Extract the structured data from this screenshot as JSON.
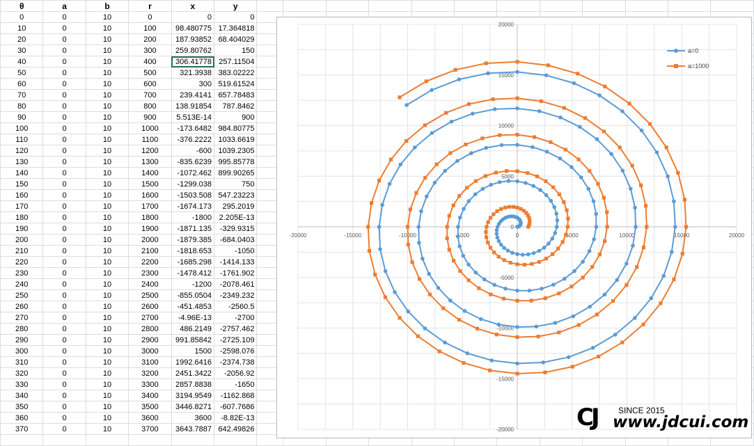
{
  "sheet": {
    "headers": [
      "θ",
      "a",
      "b",
      "r",
      "x",
      "y"
    ],
    "active_cell": {
      "row": 4,
      "col": 4
    },
    "rows": [
      [
        "0",
        "0",
        "10",
        "0",
        "0",
        "0"
      ],
      [
        "10",
        "0",
        "10",
        "100",
        "98.480775",
        "17.364818"
      ],
      [
        "20",
        "0",
        "10",
        "200",
        "187.93852",
        "68.404029"
      ],
      [
        "30",
        "0",
        "10",
        "300",
        "259.80762",
        "150"
      ],
      [
        "40",
        "0",
        "10",
        "400",
        "306.41778",
        "257.11504"
      ],
      [
        "50",
        "0",
        "10",
        "500",
        "321.3938",
        "383.02222"
      ],
      [
        "60",
        "0",
        "10",
        "600",
        "300",
        "519.61524"
      ],
      [
        "70",
        "0",
        "10",
        "700",
        "239.4141",
        "657.78483"
      ],
      [
        "80",
        "0",
        "10",
        "800",
        "138.91854",
        "787.8462"
      ],
      [
        "90",
        "0",
        "10",
        "900",
        "5.513E-14",
        "900"
      ],
      [
        "100",
        "0",
        "10",
        "1000",
        "-173.6482",
        "984.80775"
      ],
      [
        "110",
        "0",
        "10",
        "1100",
        "-376.2222",
        "1033.6619"
      ],
      [
        "120",
        "0",
        "10",
        "1200",
        "-600",
        "1039.2305"
      ],
      [
        "130",
        "0",
        "10",
        "1300",
        "-835.6239",
        "995.85778"
      ],
      [
        "140",
        "0",
        "10",
        "1400",
        "-1072.462",
        "899.90265"
      ],
      [
        "150",
        "0",
        "10",
        "1500",
        "-1299.038",
        "750"
      ],
      [
        "160",
        "0",
        "10",
        "1600",
        "-1503.508",
        "547.23223"
      ],
      [
        "170",
        "0",
        "10",
        "1700",
        "-1674.173",
        "295.2019"
      ],
      [
        "180",
        "0",
        "10",
        "1800",
        "-1800",
        "2.205E-13"
      ],
      [
        "190",
        "0",
        "10",
        "1900",
        "-1871.135",
        "-329.9315"
      ],
      [
        "200",
        "0",
        "10",
        "2000",
        "-1879.385",
        "-684.0403"
      ],
      [
        "210",
        "0",
        "10",
        "2100",
        "-1818.653",
        "-1050"
      ],
      [
        "220",
        "0",
        "10",
        "2200",
        "-1685.298",
        "-1414.133"
      ],
      [
        "230",
        "0",
        "10",
        "2300",
        "-1478.412",
        "-1761.902"
      ],
      [
        "240",
        "0",
        "10",
        "2400",
        "-1200",
        "-2078.461"
      ],
      [
        "250",
        "0",
        "10",
        "2500",
        "-855.0504",
        "-2349.232"
      ],
      [
        "260",
        "0",
        "10",
        "2600",
        "-451.4853",
        "-2560.5"
      ],
      [
        "270",
        "0",
        "10",
        "2700",
        "-4.96E-13",
        "-2700"
      ],
      [
        "280",
        "0",
        "10",
        "2800",
        "486.2149",
        "-2757.462"
      ],
      [
        "290",
        "0",
        "10",
        "2900",
        "991.85842",
        "-2725.109"
      ],
      [
        "300",
        "0",
        "10",
        "3000",
        "1500",
        "-2598.076"
      ],
      [
        "310",
        "0",
        "10",
        "3100",
        "1992.6416",
        "-2374.738"
      ],
      [
        "320",
        "0",
        "10",
        "3200",
        "2451.3422",
        "-2056.92"
      ],
      [
        "330",
        "0",
        "10",
        "3300",
        "2857.8838",
        "-1650"
      ],
      [
        "340",
        "0",
        "10",
        "3400",
        "3194.9549",
        "-1162.868"
      ],
      [
        "350",
        "0",
        "10",
        "3500",
        "3446.8271",
        "-607.7686"
      ],
      [
        "360",
        "0",
        "10",
        "3600",
        "3600",
        "-8.82E-13"
      ],
      [
        "370",
        "0",
        "10",
        "3700",
        "3643.7887",
        "642.49826"
      ]
    ]
  },
  "chart_data": {
    "type": "scatter",
    "title": "",
    "xlim": [
      -20000,
      20000
    ],
    "ylim": [
      -20000,
      20000
    ],
    "x_ticks": [
      "-20000",
      "-15000",
      "-10000",
      "-5000",
      "0",
      "5000",
      "10000",
      "15000",
      "20000"
    ],
    "y_ticks": [
      "20000",
      "15000",
      "10000",
      "5000",
      "0",
      "-5000",
      "-10000",
      "-15000",
      "-20000"
    ],
    "grid": true,
    "legend_position": "top-right",
    "series": [
      {
        "name": "a=0",
        "a": 0,
        "b": 10,
        "theta_max_deg": 1570,
        "theta_step_deg": 10,
        "marker": "circle",
        "color": "#5b9bd5"
      },
      {
        "name": "a=1000",
        "a": 1000,
        "b": 10,
        "theta_max_deg": 1570,
        "theta_step_deg": 10,
        "marker": "square",
        "color": "#ed7d31"
      }
    ]
  },
  "watermark": {
    "logo": "CJ",
    "since": "SINCE 2015",
    "url": "www.jdcui.com"
  }
}
